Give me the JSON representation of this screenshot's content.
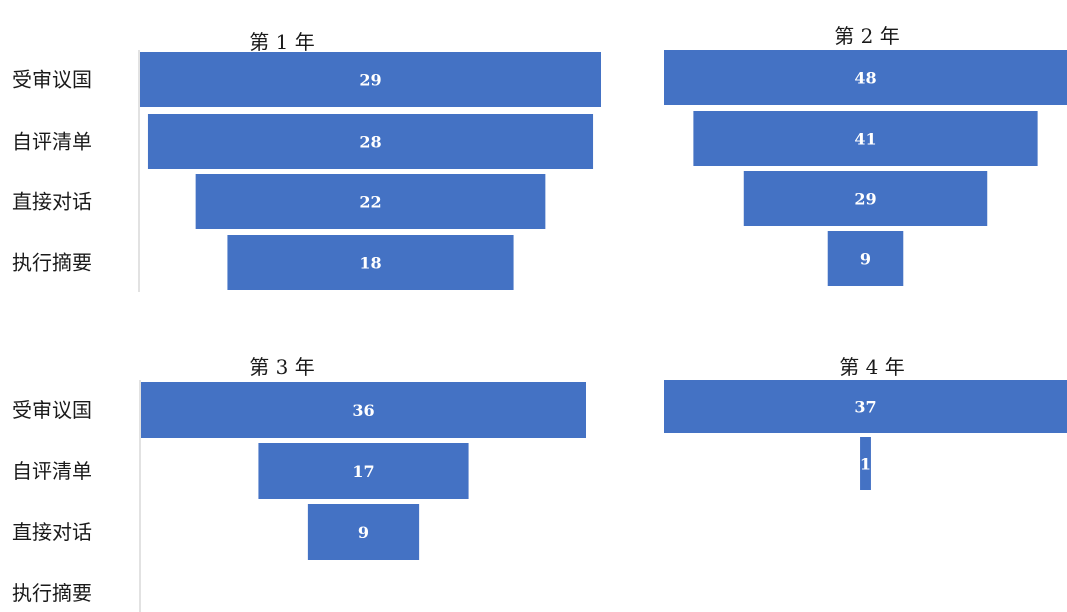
{
  "chart_data": [
    {
      "type": "bar",
      "title": "第 1 年",
      "categories": [
        "受审议国",
        "自评清单",
        "直接对话",
        "执行摘要"
      ],
      "values": [
        29,
        28,
        22,
        18
      ],
      "xlim": [
        0,
        29
      ]
    },
    {
      "type": "bar",
      "title": "第 2 年",
      "categories": [
        "受审议国",
        "自评清单",
        "直接对话",
        "执行摘要"
      ],
      "values": [
        48,
        41,
        29,
        9
      ],
      "xlim": [
        0,
        48
      ]
    },
    {
      "type": "bar",
      "title": "第 3 年",
      "categories": [
        "受审议国",
        "自评清单",
        "直接对话",
        "执行摘要"
      ],
      "values": [
        36,
        17,
        9,
        null
      ],
      "xlim": [
        0,
        36
      ]
    },
    {
      "type": "bar",
      "title": "第 4 年",
      "categories": [
        "受审议国",
        "自评清单",
        "直接对话",
        "执行摘要"
      ],
      "values": [
        37,
        1,
        null,
        null
      ],
      "xlim": [
        0,
        37
      ]
    }
  ],
  "style": {
    "bar_color": "#4472c4",
    "axis_color": "#d9d9d9",
    "label_color": "#ffffff",
    "chart_type_detail": "funnel (centered horizontal bars)",
    "category_labels_shown_on": "left panels only"
  }
}
